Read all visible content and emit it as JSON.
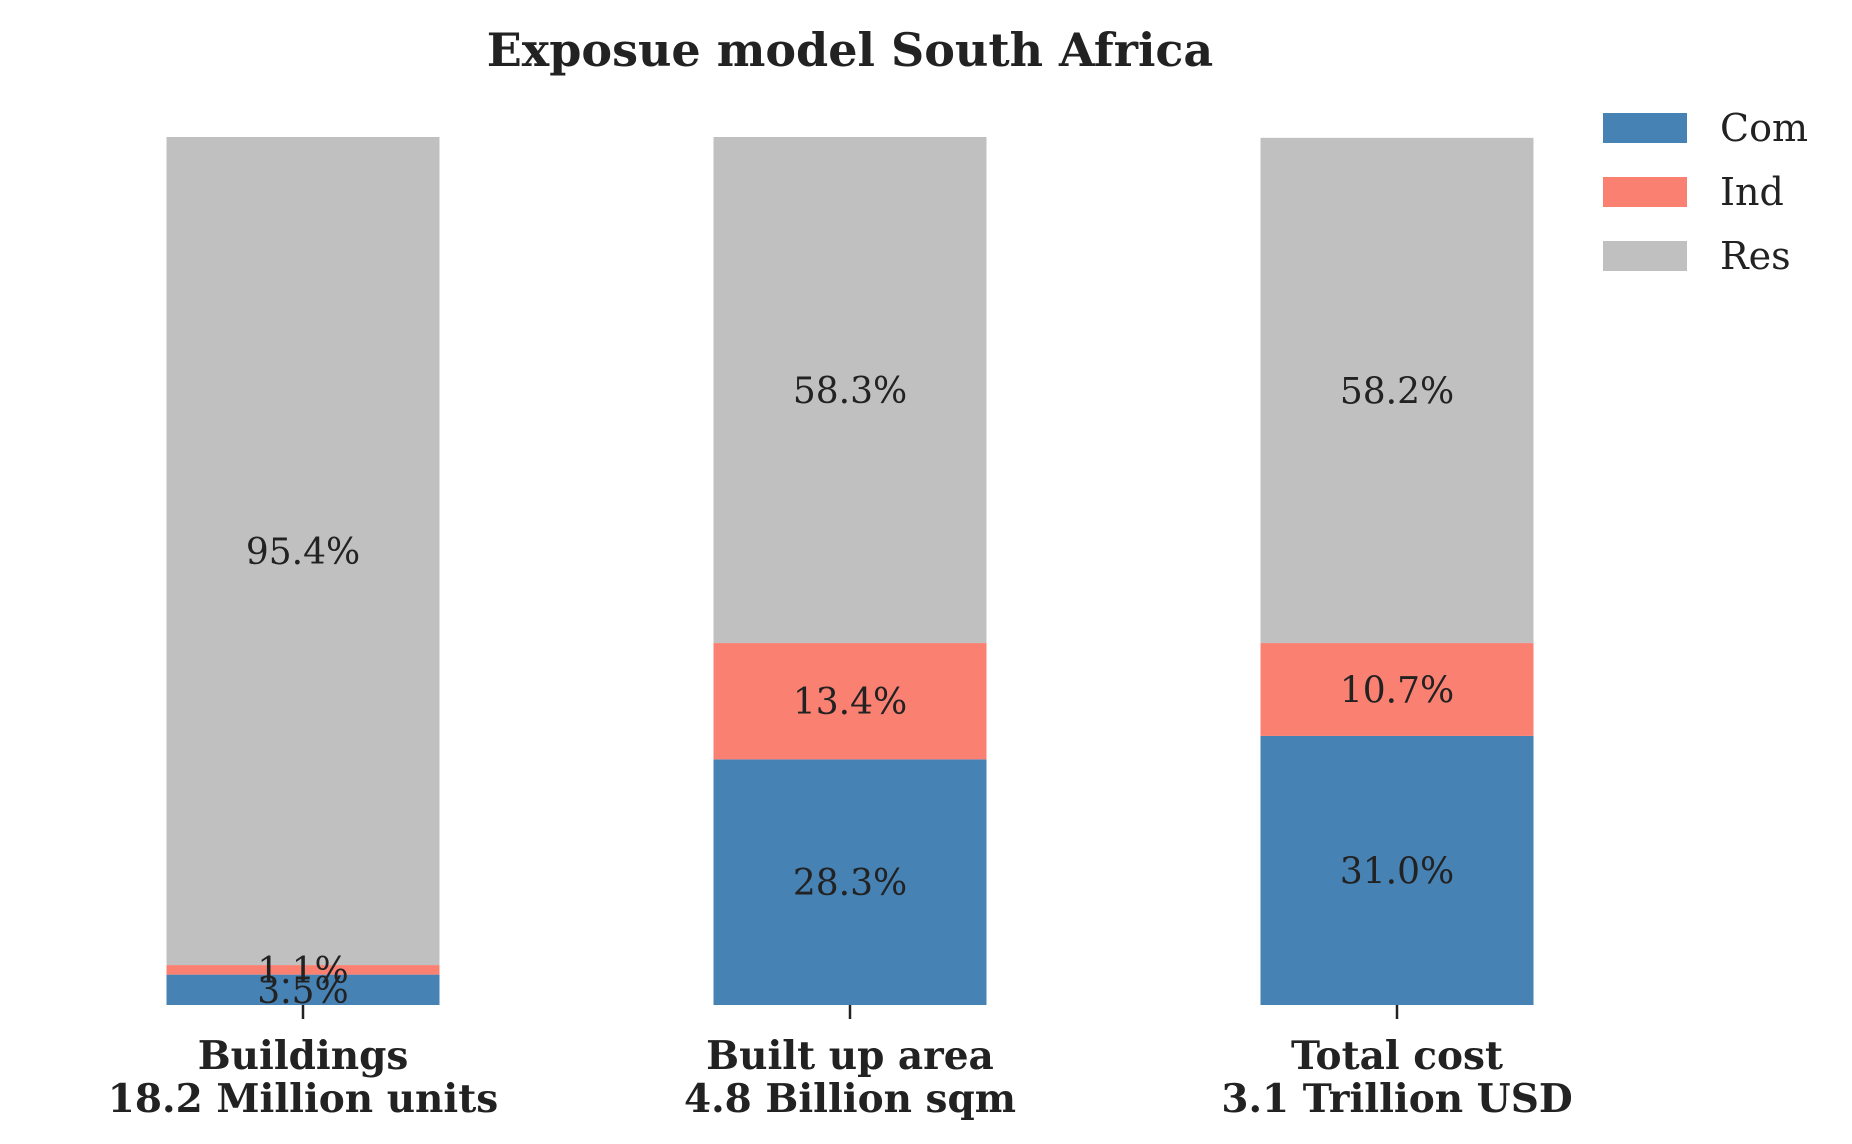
{
  "chart_data": {
    "type": "bar",
    "stacked": true,
    "percent": true,
    "title": "Exposue model South Africa",
    "categories": [
      {
        "line1": "Buildings",
        "line2": "18.2 Million units"
      },
      {
        "line1": "Built up area",
        "line2": "4.8 Billion sqm"
      },
      {
        "line1": "Total cost",
        "line2": "3.1 Trillion USD"
      }
    ],
    "series": [
      {
        "name": "Com",
        "color": "#4682b4",
        "values": [
          3.5,
          28.3,
          31.0
        ],
        "labels": [
          "3.5%",
          "28.3%",
          "31.0%"
        ]
      },
      {
        "name": "Ind",
        "color": "#fa8072",
        "values": [
          1.1,
          13.4,
          10.7
        ],
        "labels": [
          "1.1%",
          "13.4%",
          "10.7%"
        ]
      },
      {
        "name": "Res",
        "color": "#c0c0c0",
        "values": [
          95.4,
          58.3,
          58.2
        ],
        "labels": [
          "95.4%",
          "58.3%",
          "58.2%"
        ]
      }
    ],
    "ylim": [
      0,
      100
    ],
    "grid": false,
    "legend": "top-right"
  }
}
